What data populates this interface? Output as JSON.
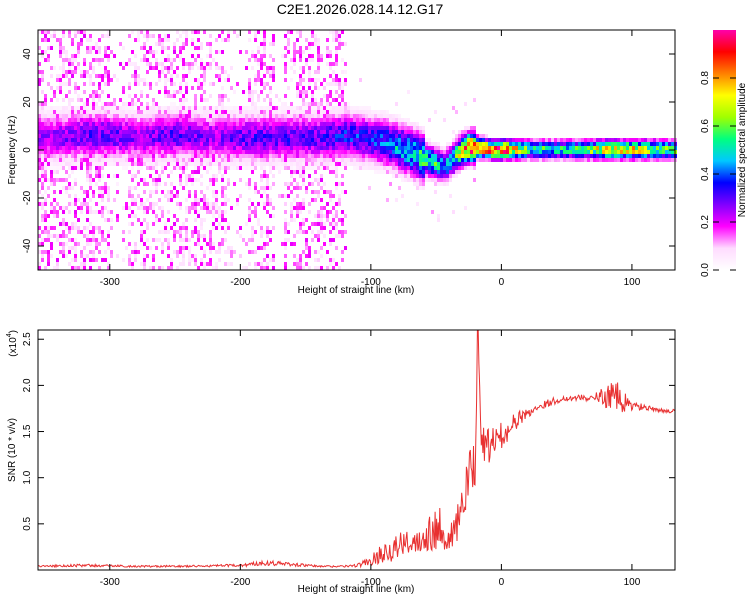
{
  "title": "C2E1.2026.028.14.12.G17",
  "chart_data": [
    {
      "type": "heatmap",
      "title": "",
      "xlabel": "Height of straight line (km)",
      "ylabel": "Frequency (Hz)",
      "xlim": [
        -355,
        133
      ],
      "ylim": [
        -50,
        50
      ],
      "xticks": [
        -300,
        -200,
        -100,
        0,
        100
      ],
      "yticks": [
        -40,
        -20,
        0,
        20,
        40
      ],
      "colorbar": {
        "label": "Normalized spectral amplitude",
        "range": [
          0,
          1
        ],
        "ticks": [
          0.0,
          0.2,
          0.4,
          0.6,
          0.8
        ],
        "tick_labels": [
          "0.0",
          "0.2",
          "0.4",
          "0.6",
          "0.8"
        ],
        "colormap": [
          "#ffffff",
          "#ffdbff",
          "#ff00ff",
          "#8000ff",
          "#0000ff",
          "#00c8ff",
          "#00ff80",
          "#a0ff00",
          "#ffff00",
          "#ff8000",
          "#ff0000",
          "#ff00aa"
        ]
      },
      "ridge": {
        "description": "dominant frequency band vs height",
        "x": [
          -345,
          -320,
          -300,
          -280,
          -250,
          -220,
          -200,
          -180,
          -160,
          -140,
          -120,
          -100,
          -90,
          -80,
          -70,
          -60,
          -50,
          -45,
          -40,
          -35,
          -30,
          -25,
          -20,
          -10,
          0,
          20,
          40,
          60,
          80,
          100,
          133
        ],
        "y": [
          6,
          7,
          7,
          6,
          7,
          6,
          6,
          6,
          6,
          6,
          7,
          5,
          4,
          2,
          0,
          -3,
          -5,
          -6,
          -4,
          -1,
          1,
          2,
          2,
          1,
          1,
          1,
          1,
          1,
          1,
          1,
          1
        ],
        "amplitude": [
          0.25,
          0.3,
          0.3,
          0.25,
          0.3,
          0.25,
          0.3,
          0.3,
          0.3,
          0.3,
          0.35,
          0.35,
          0.4,
          0.45,
          0.5,
          0.55,
          0.5,
          0.45,
          0.5,
          0.6,
          0.75,
          0.9,
          0.95,
          0.85,
          0.9,
          0.55,
          0.5,
          0.55,
          0.75,
          0.7,
          0.55
        ]
      }
    },
    {
      "type": "line",
      "title": "",
      "xlabel": "Height of straight line (km)",
      "ylabel": "SNR (10 * v/v)",
      "y_multiplier": "(x10",
      "y_multiplier_exp": "4",
      "y_multiplier_close": ")",
      "xlim": [
        -355,
        133
      ],
      "ylim": [
        0,
        2.6
      ],
      "xticks": [
        -300,
        -200,
        -100,
        0,
        100
      ],
      "yticks": [
        0.5,
        1.0,
        1.5,
        2.0,
        2.5
      ],
      "ytick_labels": [
        "0.5",
        "1.0",
        "1.5",
        "2.0",
        "2.5"
      ],
      "series": [
        {
          "name": "SNR",
          "color": "#e83030",
          "x": [
            -355,
            -320,
            -280,
            -240,
            -200,
            -180,
            -160,
            -140,
            -120,
            -110,
            -100,
            -90,
            -80,
            -70,
            -60,
            -50,
            -45,
            -40,
            -35,
            -30,
            -25,
            -20,
            -18,
            -15,
            -10,
            -5,
            0,
            10,
            20,
            30,
            40,
            50,
            60,
            70,
            80,
            85,
            90,
            95,
            100,
            110,
            120,
            133
          ],
          "y": [
            0.04,
            0.05,
            0.04,
            0.04,
            0.05,
            0.08,
            0.06,
            0.04,
            0.04,
            0.05,
            0.1,
            0.2,
            0.25,
            0.3,
            0.35,
            0.5,
            0.45,
            0.3,
            0.45,
            0.7,
            0.95,
            1.2,
            2.6,
            1.3,
            1.35,
            1.4,
            1.45,
            1.6,
            1.7,
            1.78,
            1.83,
            1.86,
            1.87,
            1.86,
            1.88,
            1.9,
            1.85,
            1.8,
            1.78,
            1.76,
            1.73,
            1.72
          ],
          "noise": [
            0.01,
            0.015,
            0.01,
            0.01,
            0.015,
            0.03,
            0.02,
            0.01,
            0.01,
            0.02,
            0.05,
            0.12,
            0.15,
            0.12,
            0.15,
            0.3,
            0.2,
            0.15,
            0.2,
            0.3,
            0.3,
            0.3,
            0.0,
            0.25,
            0.2,
            0.15,
            0.15,
            0.1,
            0.06,
            0.04,
            0.04,
            0.03,
            0.03,
            0.04,
            0.12,
            0.15,
            0.18,
            0.12,
            0.06,
            0.03,
            0.02,
            0.02
          ]
        }
      ]
    }
  ]
}
